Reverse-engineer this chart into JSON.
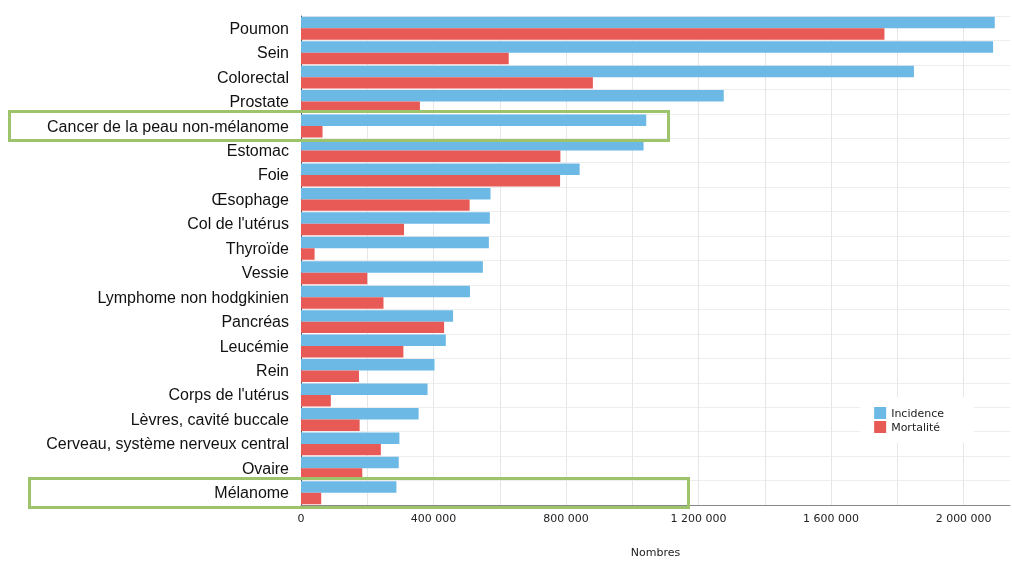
{
  "chart_data": {
    "type": "bar",
    "orientation": "horizontal",
    "xlabel": "Nombres",
    "categories": [
      "Poumon",
      "Sein",
      "Colorectal",
      "Prostate",
      "Cancer de la peau non-mélanome",
      "Estomac",
      "Foie",
      "Œsophage",
      "Col de l'utérus",
      "Thyroïde",
      "Vessie",
      "Lymphome non hodgkinien",
      "Pancréas",
      "Leucémie",
      "Rein",
      "Corps de l'utérus",
      "Lèvres, cavité buccale",
      "Cerveau, système nerveux central",
      "Ovaire",
      "Mélanome"
    ],
    "series": [
      {
        "name": "Incidence",
        "color": "#6cb9e6",
        "values": [
          2094000,
          2089000,
          1850000,
          1276000,
          1042000,
          1034000,
          841000,
          572000,
          570000,
          567000,
          549000,
          510000,
          459000,
          437000,
          403000,
          382000,
          355000,
          297000,
          295000,
          288000
        ]
      },
      {
        "name": "Mortalité",
        "color": "#e85a55",
        "values": [
          1761000,
          627000,
          881000,
          359000,
          65000,
          783000,
          782000,
          509000,
          311000,
          41000,
          200000,
          249000,
          432000,
          309000,
          175000,
          90000,
          177000,
          241000,
          185000,
          61000
        ]
      }
    ],
    "xlim": [
      0,
      2140000
    ],
    "xticks": [
      0,
      {
        "value": 200000,
        "label": null
      },
      {
        "value": 400000,
        "label": "400 000"
      },
      {
        "value": 600000,
        "label": null
      },
      {
        "value": 800000,
        "label": "800 000"
      },
      {
        "value": 1000000,
        "label": null
      },
      {
        "value": 1200000,
        "label": "1 200 000"
      },
      {
        "value": 1400000,
        "label": null
      },
      {
        "value": 1600000,
        "label": "1 600 000"
      },
      {
        "value": 1800000,
        "label": null
      },
      {
        "value": 2000000,
        "label": "2 000 000"
      }
    ],
    "grid": true,
    "legend": "bottom right"
  }
}
